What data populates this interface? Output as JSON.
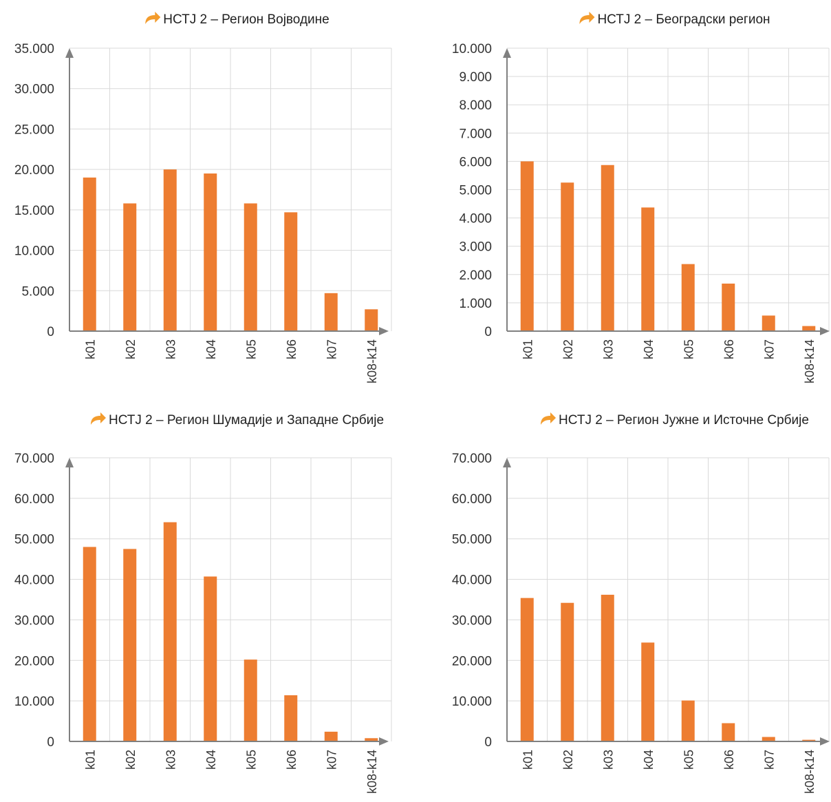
{
  "colors": {
    "bar": "#ED7D31",
    "axis": "#808080",
    "grid": "#D9D9D9",
    "title_icon": "#F39C2D"
  },
  "icons": {
    "title_icon": "curved-arrow-right-icon"
  },
  "chart_data": [
    {
      "type": "bar",
      "title": "НСТЈ 2 – Регион Војводине",
      "categories": [
        "k01",
        "k02",
        "k03",
        "k04",
        "k05",
        "k06",
        "k07",
        "k08-k14"
      ],
      "values": [
        19000,
        15800,
        20000,
        19500,
        15800,
        14700,
        4700,
        2700
      ],
      "ylim": [
        0,
        35000
      ],
      "yticks": [
        0,
        5000,
        10000,
        15000,
        20000,
        25000,
        30000,
        35000
      ],
      "ytick_labels": [
        "0",
        "5.000",
        "10.000",
        "15.000",
        "20.000",
        "25.000",
        "30.000",
        "35.000"
      ],
      "xlabel": "",
      "ylabel": "",
      "grid": true
    },
    {
      "type": "bar",
      "title": "НСТЈ 2 – Београдски регион",
      "categories": [
        "k01",
        "k02",
        "k03",
        "k04",
        "k05",
        "k06",
        "k07",
        "k08-k14"
      ],
      "values": [
        6000,
        5250,
        5870,
        4370,
        2370,
        1680,
        550,
        180
      ],
      "ylim": [
        0,
        10000
      ],
      "yticks": [
        0,
        1000,
        2000,
        3000,
        4000,
        5000,
        6000,
        7000,
        8000,
        9000,
        10000
      ],
      "ytick_labels": [
        "0",
        "1.000",
        "2.000",
        "3.000",
        "4.000",
        "5.000",
        "6.000",
        "7.000",
        "8.000",
        "9.000",
        "10.000"
      ],
      "xlabel": "",
      "ylabel": "",
      "grid": true
    },
    {
      "type": "bar",
      "title": "НСТЈ 2 – Регион Шумадије и Западне Србије",
      "categories": [
        "k01",
        "k02",
        "k03",
        "k04",
        "k05",
        "k06",
        "k07",
        "k08-k14"
      ],
      "values": [
        48000,
        47500,
        54100,
        40700,
        20200,
        11400,
        2400,
        800
      ],
      "ylim": [
        0,
        70000
      ],
      "yticks": [
        0,
        10000,
        20000,
        30000,
        40000,
        50000,
        60000,
        70000
      ],
      "ytick_labels": [
        "0",
        "10.000",
        "20.000",
        "30.000",
        "40.000",
        "50.000",
        "60.000",
        "70.000"
      ],
      "xlabel": "",
      "ylabel": "",
      "grid": true
    },
    {
      "type": "bar",
      "title": "НСТЈ 2 – Регион Јужне и Источне Србије",
      "categories": [
        "k01",
        "k02",
        "k03",
        "k04",
        "k05",
        "k06",
        "k07",
        "k08-k14"
      ],
      "values": [
        35400,
        34200,
        36200,
        24400,
        10100,
        4500,
        1100,
        400
      ],
      "ylim": [
        0,
        70000
      ],
      "yticks": [
        0,
        10000,
        20000,
        30000,
        40000,
        50000,
        60000,
        70000
      ],
      "ytick_labels": [
        "0",
        "10.000",
        "20.000",
        "30.000",
        "40.000",
        "50.000",
        "60.000",
        "70.000"
      ],
      "xlabel": "",
      "ylabel": "",
      "grid": true
    }
  ]
}
